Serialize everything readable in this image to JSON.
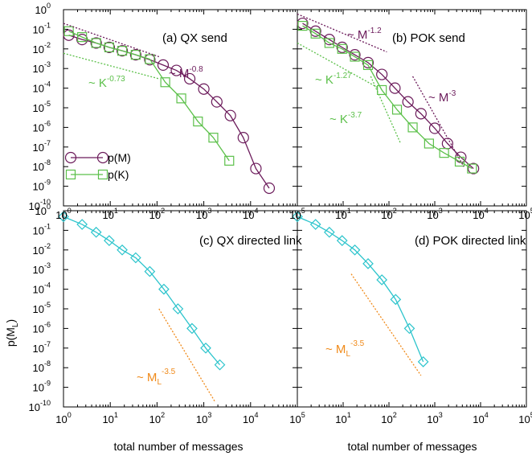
{
  "axes": {
    "xlabel": "total number of messages",
    "ylabel_base": "p(M",
    "ylabel_sub": "L",
    "ylabel_end": ")",
    "tick_base": "10",
    "x_tick_exponents": [
      "0",
      "1",
      "2",
      "3",
      "4",
      "5"
    ],
    "y_tick_exponents": [
      "0",
      "-1",
      "-2",
      "-3",
      "-4",
      "-5",
      "-6",
      "-7",
      "-8",
      "-9",
      "-10"
    ]
  },
  "colors": {
    "M": "#6b1a5a",
    "K": "#5cc04a",
    "L": "#2cc4cc",
    "fitL": "#f08a1a"
  },
  "chart_data": [
    {
      "type": "line",
      "title": "(a) QX send",
      "xlim": [
        1,
        100000
      ],
      "ylim": [
        1e-10,
        1
      ],
      "xscale": "log",
      "yscale": "log",
      "grid": false,
      "legend": "left",
      "series": [
        {
          "name": "p(M)",
          "marker": "circle",
          "color": "M",
          "x": [
            1.3,
            2.5,
            5,
            9.5,
            18,
            35,
            70,
            135,
            260,
            500,
            1000,
            1900,
            3700,
            7000,
            13000,
            25000
          ],
          "y": [
            0.05,
            0.03,
            0.02,
            0.012,
            0.008,
            0.005,
            0.0028,
            0.0015,
            0.0008,
            0.0003,
            9e-05,
            2e-05,
            4e-06,
            3e-07,
            8e-09,
            8e-10
          ]
        },
        {
          "name": "p(K)",
          "marker": "square",
          "color": "K",
          "x": [
            1.3,
            2.5,
            5,
            9.5,
            18,
            35,
            70,
            150,
            330,
            750,
            1600,
            3500
          ],
          "y": [
            0.08,
            0.04,
            0.02,
            0.012,
            0.008,
            0.005,
            0.003,
            0.0002,
            3e-05,
            2e-06,
            3e-07,
            2e-08
          ]
        }
      ],
      "annotations": [
        {
          "text": "~ M",
          "exp": "-0.8",
          "color": "M"
        },
        {
          "text": "~ K",
          "exp": "-0.73",
          "color": "K"
        }
      ]
    },
    {
      "type": "line",
      "title": "(b) POK send",
      "xlim": [
        1,
        100000
      ],
      "ylim": [
        1e-10,
        1
      ],
      "xscale": "log",
      "yscale": "log",
      "grid": false,
      "series": [
        {
          "name": "p(M)",
          "marker": "circle",
          "color": "M",
          "x": [
            1.3,
            2.5,
            5,
            9.5,
            18,
            35,
            70,
            135,
            260,
            500,
            1000,
            1900,
            3700,
            7000
          ],
          "y": [
            0.2,
            0.08,
            0.03,
            0.012,
            0.005,
            0.002,
            0.0005,
            0.0001,
            2e-05,
            5e-06,
            9e-07,
            1.5e-07,
            3e-08,
            8e-09
          ]
        },
        {
          "name": "p(K)",
          "marker": "square",
          "color": "K",
          "x": [
            1.3,
            2.5,
            5,
            9.5,
            18,
            35,
            70,
            150,
            330,
            750,
            1600,
            3500,
            6500
          ],
          "y": [
            0.15,
            0.06,
            0.02,
            0.01,
            0.004,
            0.0015,
            8e-05,
            8e-06,
            1e-06,
            1.5e-07,
            5e-08,
            1.8e-08,
            8e-09
          ]
        }
      ],
      "annotations": [
        {
          "text": "~ M",
          "exp": "-1.2",
          "color": "M"
        },
        {
          "text": "~ K",
          "exp": "-1.27",
          "color": "K"
        },
        {
          "text": "~ K",
          "exp": "-3.7",
          "color": "K"
        },
        {
          "text": "~ M",
          "exp": "-3",
          "color": "M"
        }
      ]
    },
    {
      "type": "line",
      "title": "(c) QX directed link",
      "xlim": [
        1,
        100000
      ],
      "ylim": [
        1e-10,
        1
      ],
      "xscale": "log",
      "yscale": "log",
      "grid": false,
      "series": [
        {
          "name": "p(M_L)",
          "marker": "diamond",
          "color": "L",
          "x": [
            1,
            2.5,
            5,
            9.5,
            18,
            35,
            70,
            140,
            280,
            560,
            1100,
            2200
          ],
          "y": [
            0.5,
            0.2,
            0.08,
            0.03,
            0.01,
            0.004,
            0.0008,
            0.0001,
            1e-05,
            1e-06,
            1e-07,
            1.4e-08
          ]
        }
      ],
      "annotations": [
        {
          "text": "~ M",
          "sub": "L",
          "exp": "-3.5",
          "color": "fitL"
        }
      ]
    },
    {
      "type": "line",
      "title": "(d) POK directed link",
      "xlim": [
        1,
        100000
      ],
      "ylim": [
        1e-10,
        1
      ],
      "xscale": "log",
      "yscale": "log",
      "grid": false,
      "series": [
        {
          "name": "p(M_L)",
          "marker": "diamond",
          "color": "L",
          "x": [
            1,
            2.5,
            5,
            9.5,
            18,
            35,
            70,
            140,
            280,
            560
          ],
          "y": [
            0.5,
            0.2,
            0.08,
            0.03,
            0.01,
            0.002,
            0.0003,
            3e-05,
            1e-06,
            2e-08
          ]
        }
      ],
      "annotations": [
        {
          "text": "~ M",
          "sub": "L",
          "exp": "-3.5",
          "color": "fitL"
        }
      ]
    }
  ]
}
